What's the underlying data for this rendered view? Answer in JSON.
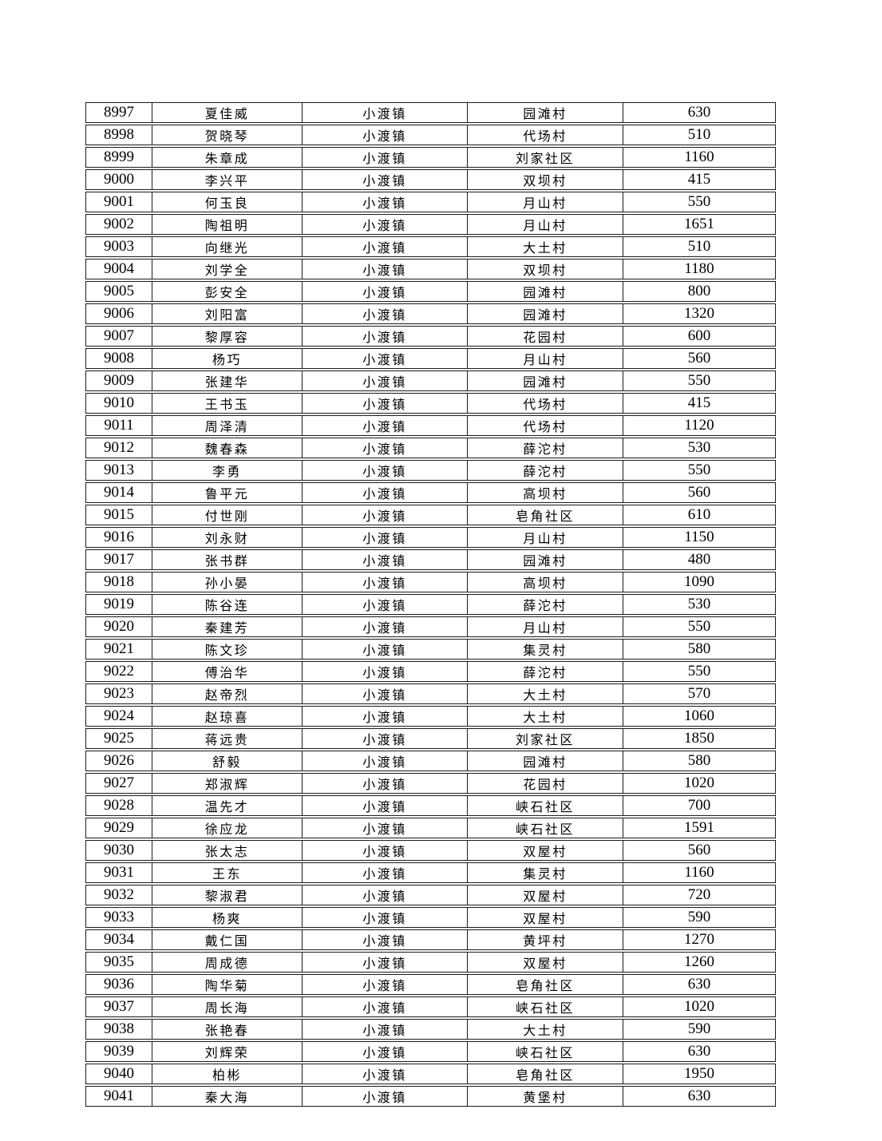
{
  "page": {
    "background": "#ffffff",
    "text_color": "#000000",
    "border_color": "#1b1b1b"
  },
  "table": {
    "row_fields": [
      "serial",
      "name",
      "town",
      "village",
      "amount"
    ],
    "rows": [
      [
        "8997",
        "夏佳威",
        "小渡镇",
        "园滩村",
        "630"
      ],
      [
        "8998",
        "贺晓琴",
        "小渡镇",
        "代场村",
        "510"
      ],
      [
        "8999",
        "朱章成",
        "小渡镇",
        "刘家社区",
        "1160"
      ],
      [
        "9000",
        "李兴平",
        "小渡镇",
        "双坝村",
        "415"
      ],
      [
        "9001",
        "何玉良",
        "小渡镇",
        "月山村",
        "550"
      ],
      [
        "9002",
        "陶祖明",
        "小渡镇",
        "月山村",
        "1651"
      ],
      [
        "9003",
        "向继光",
        "小渡镇",
        "大土村",
        "510"
      ],
      [
        "9004",
        "刘学全",
        "小渡镇",
        "双坝村",
        "1180"
      ],
      [
        "9005",
        "彭安全",
        "小渡镇",
        "园滩村",
        "800"
      ],
      [
        "9006",
        "刘阳富",
        "小渡镇",
        "园滩村",
        "1320"
      ],
      [
        "9007",
        "黎厚容",
        "小渡镇",
        "花园村",
        "600"
      ],
      [
        "9008",
        "杨巧",
        "小渡镇",
        "月山村",
        "560"
      ],
      [
        "9009",
        "张建华",
        "小渡镇",
        "园滩村",
        "550"
      ],
      [
        "9010",
        "王书玉",
        "小渡镇",
        "代场村",
        "415"
      ],
      [
        "9011",
        "周泽清",
        "小渡镇",
        "代场村",
        "1120"
      ],
      [
        "9012",
        "魏春森",
        "小渡镇",
        "薛沱村",
        "530"
      ],
      [
        "9013",
        "李勇",
        "小渡镇",
        "薛沱村",
        "550"
      ],
      [
        "9014",
        "鲁平元",
        "小渡镇",
        "高坝村",
        "560"
      ],
      [
        "9015",
        "付世刚",
        "小渡镇",
        "皂角社区",
        "610"
      ],
      [
        "9016",
        "刘永财",
        "小渡镇",
        "月山村",
        "1150"
      ],
      [
        "9017",
        "张书群",
        "小渡镇",
        "园滩村",
        "480"
      ],
      [
        "9018",
        "孙小晏",
        "小渡镇",
        "高坝村",
        "1090"
      ],
      [
        "9019",
        "陈谷连",
        "小渡镇",
        "薛沱村",
        "530"
      ],
      [
        "9020",
        "秦建芳",
        "小渡镇",
        "月山村",
        "550"
      ],
      [
        "9021",
        "陈文珍",
        "小渡镇",
        "集灵村",
        "580"
      ],
      [
        "9022",
        "傅治华",
        "小渡镇",
        "薛沱村",
        "550"
      ],
      [
        "9023",
        "赵帝烈",
        "小渡镇",
        "大土村",
        "570"
      ],
      [
        "9024",
        "赵琼喜",
        "小渡镇",
        "大土村",
        "1060"
      ],
      [
        "9025",
        "蒋远贵",
        "小渡镇",
        "刘家社区",
        "1850"
      ],
      [
        "9026",
        "舒毅",
        "小渡镇",
        "园滩村",
        "580"
      ],
      [
        "9027",
        "郑淑辉",
        "小渡镇",
        "花园村",
        "1020"
      ],
      [
        "9028",
        "温先才",
        "小渡镇",
        "峡石社区",
        "700"
      ],
      [
        "9029",
        "徐应龙",
        "小渡镇",
        "峡石社区",
        "1591"
      ],
      [
        "9030",
        "张太志",
        "小渡镇",
        "双屋村",
        "560"
      ],
      [
        "9031",
        "王东",
        "小渡镇",
        "集灵村",
        "1160"
      ],
      [
        "9032",
        "黎淑君",
        "小渡镇",
        "双屋村",
        "720"
      ],
      [
        "9033",
        "杨爽",
        "小渡镇",
        "双屋村",
        "590"
      ],
      [
        "9034",
        "戴仁国",
        "小渡镇",
        "黄坪村",
        "1270"
      ],
      [
        "9035",
        "周成德",
        "小渡镇",
        "双屋村",
        "1260"
      ],
      [
        "9036",
        "陶华菊",
        "小渡镇",
        "皂角社区",
        "630"
      ],
      [
        "9037",
        "周长海",
        "小渡镇",
        "峡石社区",
        "1020"
      ],
      [
        "9038",
        "张艳春",
        "小渡镇",
        "大土村",
        "590"
      ],
      [
        "9039",
        "刘辉荣",
        "小渡镇",
        "峡石社区",
        "630"
      ],
      [
        "9040",
        "柏彬",
        "小渡镇",
        "皂角社区",
        "1950"
      ],
      [
        "9041",
        "秦大海",
        "小渡镇",
        "黄堡村",
        "630"
      ]
    ]
  }
}
